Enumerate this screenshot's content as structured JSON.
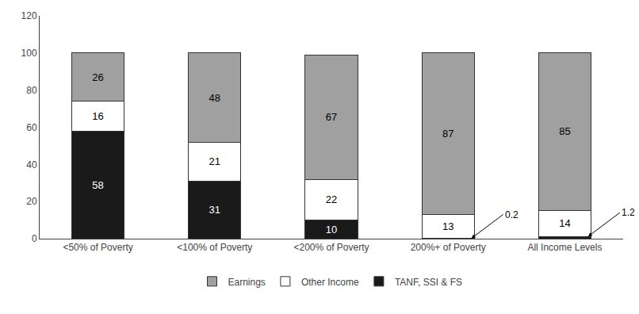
{
  "chart_data": {
    "type": "bar",
    "stacked": true,
    "categories": [
      "<50% of Poverty",
      "<100% of Poverty",
      "<200% of Poverty",
      "200%+ of Poverty",
      "All Income Levels"
    ],
    "series": [
      {
        "name": "TANF, SSI & FS",
        "color": "#1a1a1a",
        "values": [
          58,
          31,
          10,
          0.2,
          1.2
        ]
      },
      {
        "name": "Other Income",
        "color": "#ffffff",
        "values": [
          16,
          21,
          22,
          13,
          14
        ]
      },
      {
        "name": "Earnings",
        "color": "#a0a0a0",
        "values": [
          26,
          48,
          67,
          87,
          85
        ]
      }
    ],
    "ylim": [
      0,
      120
    ],
    "yticks": [
      0,
      20,
      40,
      60,
      80,
      100,
      120
    ],
    "grid": false,
    "data_labels": true,
    "legend": "bottom"
  }
}
